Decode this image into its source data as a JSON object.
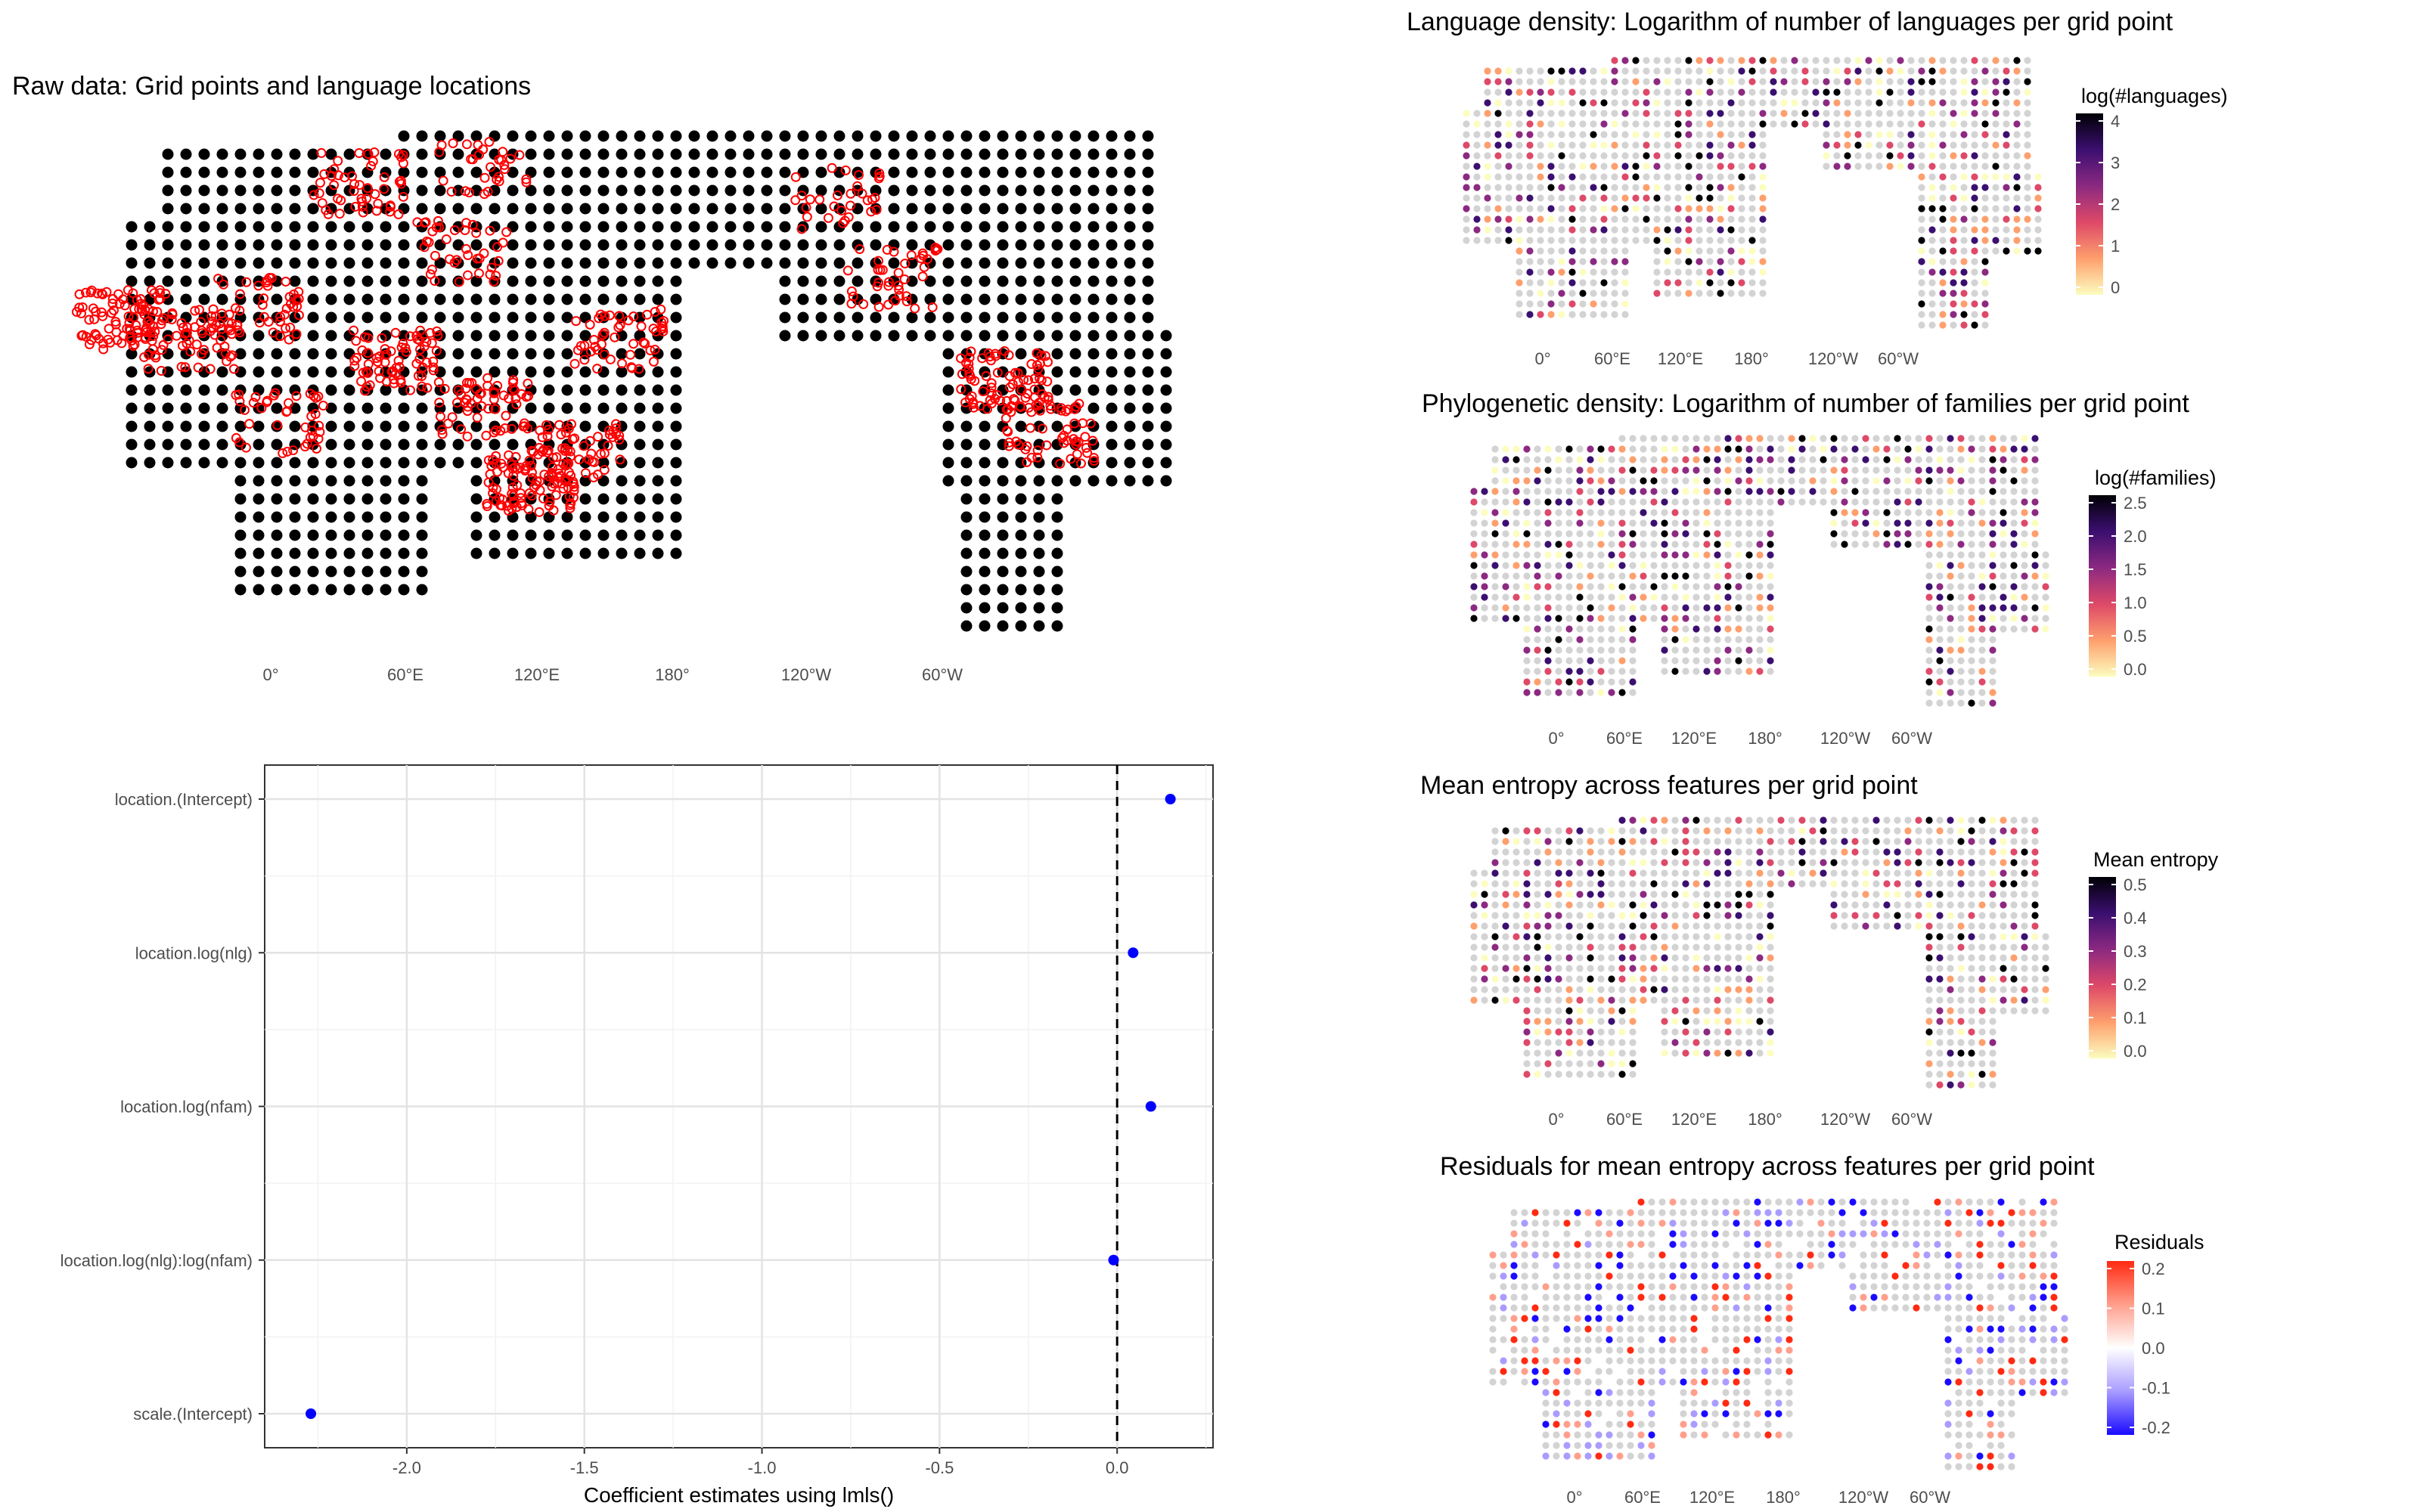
{
  "raw_map": {
    "title": "Raw data: Grid points and language locations",
    "lon_ticks": [
      "0°",
      "60°E",
      "120°E",
      "180°",
      "120°W",
      "60°W"
    ],
    "grid_point_color": "#000000",
    "language_marker_color": "#ff0000"
  },
  "maps": [
    {
      "title": "Language density: Logarithm of number of languages per grid point",
      "legend_title": "log(#languages)",
      "legend_ticks": [
        "4",
        "3",
        "2",
        "1",
        "0"
      ],
      "lon_ticks": [
        "0°",
        "60°E",
        "120°E",
        "180°",
        "120°W",
        "60°W"
      ],
      "palette": [
        "#000004",
        "#3b0f70",
        "#8c2981",
        "#de4968",
        "#fe9f6d",
        "#fcfdbf"
      ]
    },
    {
      "title": "Phylogenetic density: Logarithm of number of families per grid point",
      "legend_title": "log(#families)",
      "legend_ticks": [
        "2.5",
        "2.0",
        "1.5",
        "1.0",
        "0.5",
        "0.0"
      ],
      "lon_ticks": [
        "0°",
        "60°E",
        "120°E",
        "180°",
        "120°W",
        "60°W"
      ],
      "palette": [
        "#000004",
        "#3b0f70",
        "#8c2981",
        "#de4968",
        "#fe9f6d",
        "#fcfdbf"
      ]
    },
    {
      "title": "Mean entropy across features per grid point",
      "legend_title": "Mean entropy",
      "legend_ticks": [
        "0.5",
        "0.4",
        "0.3",
        "0.2",
        "0.1",
        "0.0"
      ],
      "lon_ticks": [
        "0°",
        "60°E",
        "120°E",
        "180°",
        "120°W",
        "60°W"
      ],
      "palette": [
        "#000004",
        "#3b0f70",
        "#8c2981",
        "#de4968",
        "#fe9f6d",
        "#fcfdbf"
      ]
    },
    {
      "title": "Residuals for mean entropy across features per grid point",
      "legend_title": "Residuals",
      "legend_ticks": [
        "0.2",
        "0.1",
        "0.0",
        "-0.1",
        "-0.2"
      ],
      "lon_ticks": [
        "0°",
        "60°E",
        "120°E",
        "180°",
        "120°W",
        "60°W"
      ],
      "palette": [
        "#ff2a12",
        "#ff9f8c",
        "#ffffff",
        "#a99cff",
        "#1a0aff"
      ]
    }
  ],
  "chart_data": {
    "type": "scatter",
    "xlabel": "Coefficient estimates using lmls()",
    "ylabel": "",
    "xlim": [
      -2.4,
      0.27
    ],
    "x_ticks": [
      -2.0,
      -1.5,
      -1.0,
      -0.5,
      0.0
    ],
    "x_tick_labels": [
      "-2.0",
      "-1.5",
      "-1.0",
      "-0.5",
      "0.0"
    ],
    "categories": [
      "location.(Intercept)",
      "location.log(nlg)",
      "location.log(nfam)",
      "location.log(nlg):log(nfam)",
      "scale.(Intercept)"
    ],
    "values": [
      0.15,
      0.045,
      0.095,
      -0.01,
      -2.27
    ],
    "reference_line": 0.0,
    "point_color": "#0000ff",
    "grid": true
  }
}
